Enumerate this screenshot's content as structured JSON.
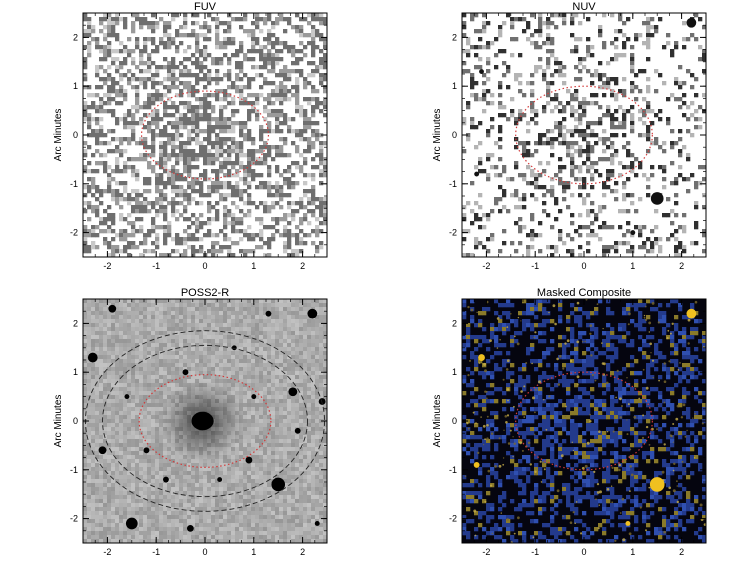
{
  "chart_data": [
    {
      "type": "heatmap",
      "title": "FUV",
      "ylabel": "Arc Minutes",
      "xlim": [
        -2.5,
        2.5
      ],
      "ylim": [
        -2.5,
        2.5
      ],
      "xticks": [
        "-2",
        "-1",
        "0",
        "1",
        "2"
      ],
      "yticks": [
        "-2",
        "-1",
        "0",
        "1",
        "2"
      ],
      "style": "fuv",
      "ellipses": [
        {
          "rx": 1.3,
          "ry": 0.9,
          "color": "#d23a3a",
          "dash": "dotted"
        }
      ],
      "sources": []
    },
    {
      "type": "heatmap",
      "title": "NUV",
      "ylabel": "Arc Minutes",
      "xlim": [
        -2.5,
        2.5
      ],
      "ylim": [
        -2.5,
        2.5
      ],
      "xticks": [
        "-2",
        "-1",
        "0",
        "1",
        "2"
      ],
      "yticks": [
        "-2",
        "-1",
        "0",
        "1",
        "2"
      ],
      "style": "nuv",
      "ellipses": [
        {
          "rx": 1.4,
          "ry": 1.0,
          "color": "#d23a3a",
          "dash": "dotted"
        }
      ],
      "sources": [
        {
          "x": 1.5,
          "y": -1.3,
          "r": 0.13
        },
        {
          "x": 2.2,
          "y": 2.3,
          "r": 0.1
        },
        {
          "x": -2.1,
          "y": 1.3,
          "r": 0.05
        },
        {
          "x": -2.2,
          "y": -0.8,
          "r": 0.05
        },
        {
          "x": 1.0,
          "y": -2.0,
          "r": 0.05
        }
      ]
    },
    {
      "type": "heatmap",
      "title": "POSS2-R",
      "ylabel": "Arc Minutes",
      "xlim": [
        -2.5,
        2.5
      ],
      "ylim": [
        -2.5,
        2.5
      ],
      "xticks": [
        "-2",
        "-1",
        "0",
        "1",
        "2"
      ],
      "yticks": [
        "-2",
        "-1",
        "0",
        "1",
        "2"
      ],
      "style": "poss",
      "ellipses": [
        {
          "rx": 1.35,
          "ry": 0.95,
          "color": "#d23a3a",
          "dash": "dotted"
        },
        {
          "rx": 2.1,
          "ry": 1.55,
          "color": "#222222",
          "dash": "dashed"
        },
        {
          "rx": 2.45,
          "ry": 1.85,
          "color": "#222222",
          "dash": "dashed"
        }
      ],
      "sources": [
        {
          "x": -0.05,
          "y": 0.0,
          "r": 0.38,
          "galaxy": true
        },
        {
          "x": 2.2,
          "y": 2.2,
          "r": 0.1
        },
        {
          "x": -1.9,
          "y": 2.3,
          "r": 0.08
        },
        {
          "x": -2.3,
          "y": 1.3,
          "r": 0.1
        },
        {
          "x": -1.5,
          "y": -2.1,
          "r": 0.12
        },
        {
          "x": 1.5,
          "y": -1.3,
          "r": 0.14
        },
        {
          "x": 1.8,
          "y": 0.6,
          "r": 0.09
        },
        {
          "x": -0.4,
          "y": 1.0,
          "r": 0.06
        },
        {
          "x": 0.9,
          "y": -0.8,
          "r": 0.07
        },
        {
          "x": -1.2,
          "y": -0.6,
          "r": 0.06
        },
        {
          "x": 2.4,
          "y": 0.4,
          "r": 0.07
        },
        {
          "x": -0.8,
          "y": -1.2,
          "r": 0.06
        },
        {
          "x": 0.3,
          "y": -1.2,
          "r": 0.05
        },
        {
          "x": -2.1,
          "y": -0.6,
          "r": 0.08
        },
        {
          "x": 1.9,
          "y": -0.2,
          "r": 0.06
        },
        {
          "x": 0.6,
          "y": 1.5,
          "r": 0.05
        },
        {
          "x": -1.6,
          "y": 0.5,
          "r": 0.05
        },
        {
          "x": 1.3,
          "y": 2.2,
          "r": 0.06
        },
        {
          "x": -0.3,
          "y": -2.2,
          "r": 0.07
        },
        {
          "x": 2.3,
          "y": -2.1,
          "r": 0.05
        },
        {
          "x": 1.0,
          "y": 0.5,
          "r": 0.05
        }
      ]
    },
    {
      "type": "heatmap",
      "title": "Masked Composite",
      "ylabel": "Arc Minutes",
      "xlim": [
        -2.5,
        2.5
      ],
      "ylim": [
        -2.5,
        2.5
      ],
      "xticks": [
        "-2",
        "-1",
        "0",
        "1",
        "2"
      ],
      "yticks": [
        "-2",
        "-1",
        "0",
        "1",
        "2"
      ],
      "style": "composite",
      "ellipses": [
        {
          "rx": 1.4,
          "ry": 1.0,
          "color": "#d23a3a",
          "dash": "dotted"
        }
      ],
      "sources": [
        {
          "x": 1.5,
          "y": -1.3,
          "r": 0.15
        },
        {
          "x": 2.2,
          "y": 2.2,
          "r": 0.1
        },
        {
          "x": -2.1,
          "y": 1.3,
          "r": 0.07
        },
        {
          "x": -2.2,
          "y": -0.9,
          "r": 0.06
        },
        {
          "x": 0.9,
          "y": -2.1,
          "r": 0.05
        }
      ]
    }
  ]
}
